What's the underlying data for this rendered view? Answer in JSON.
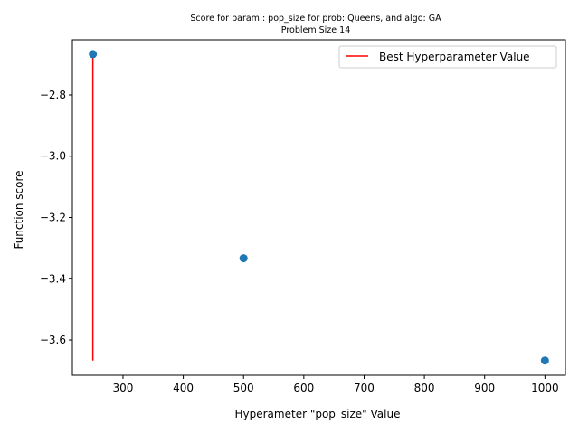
{
  "chart_data": {
    "type": "scatter",
    "title": "Score for param : pop_size for prob: Queens, and algo: GA",
    "subtitle": "Problem Size 14",
    "xlabel": "Hyperameter \"pop_size\" Value",
    "ylabel": "Function score",
    "xlim": [
      216,
      1034
    ],
    "ylim": [
      -3.715,
      -2.62
    ],
    "xticks": [
      300,
      400,
      500,
      600,
      700,
      800,
      900,
      1000
    ],
    "xtick_labels": [
      "300",
      "400",
      "500",
      "600",
      "700",
      "800",
      "900",
      "1000"
    ],
    "yticks": [
      -3.6,
      -3.4,
      -3.2,
      -3.0,
      -2.8
    ],
    "ytick_labels": [
      "−3.6",
      "−3.4",
      "−3.2",
      "−3.0",
      "−2.8"
    ],
    "grid": false,
    "legend_position": "top-right",
    "series": [
      {
        "type": "scatter",
        "color": "#1f77b4",
        "x": [
          250,
          500,
          1000
        ],
        "y": [
          -2.667,
          -3.333,
          -3.667
        ]
      },
      {
        "type": "vline",
        "name": "Best Hyperparameter Value",
        "color": "#ff0000",
        "x": 250,
        "ymin": -3.667,
        "ymax": -2.667
      }
    ]
  }
}
